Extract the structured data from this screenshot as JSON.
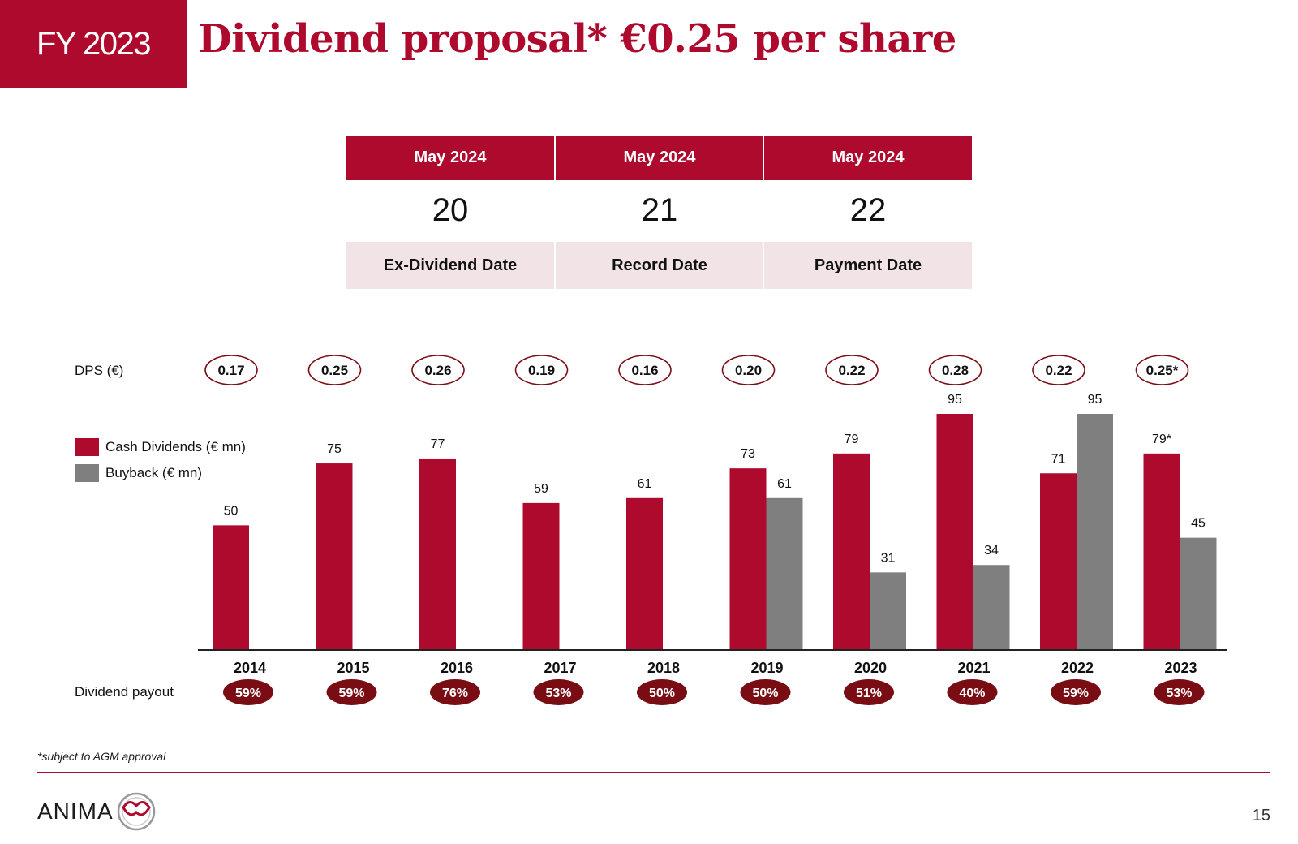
{
  "header": {
    "period": "FY 2023",
    "title": "Dividend proposal* €0.25 per share"
  },
  "dates": [
    {
      "month": "May 2024",
      "day": "20",
      "label": "Ex-Dividend Date"
    },
    {
      "month": "May 2024",
      "day": "21",
      "label": "Record Date"
    },
    {
      "month": "May 2024",
      "day": "22",
      "label": "Payment Date"
    }
  ],
  "labels": {
    "dps": "DPS (€)",
    "payout": "Dividend payout"
  },
  "legend": {
    "cash": "Cash Dividends (€ mn)",
    "buyback": "Buyback (€ mn)"
  },
  "colors": {
    "brand": "#ae0a2e",
    "buyback": "#7f7f7f",
    "payout": "#7a0c14",
    "date_label_bg": "#f2e4e6"
  },
  "chart_data": {
    "type": "bar",
    "categories": [
      "2014",
      "2015",
      "2016",
      "2017",
      "2018",
      "2019",
      "2020",
      "2021",
      "2022",
      "2023"
    ],
    "series": [
      {
        "name": "Cash Dividends (€ mn)",
        "values": [
          50,
          75,
          77,
          59,
          61,
          73,
          79,
          95,
          71,
          79
        ],
        "value_labels": [
          "50",
          "75",
          "77",
          "59",
          "61",
          "73",
          "79",
          "95",
          "71",
          "79*"
        ]
      },
      {
        "name": "Buyback (€ mn)",
        "values": [
          null,
          null,
          null,
          null,
          null,
          61,
          31,
          34,
          95,
          45
        ],
        "value_labels": [
          "",
          "",
          "",
          "",
          "",
          "61",
          "31",
          "34",
          "95",
          "45"
        ]
      }
    ],
    "dps": [
      "0.17",
      "0.25",
      "0.26",
      "0.19",
      "0.16",
      "0.20",
      "0.22",
      "0.28",
      "0.22",
      "0.25*"
    ],
    "payout": [
      "59%",
      "59%",
      "76%",
      "53%",
      "50%",
      "50%",
      "51%",
      "40%",
      "59%",
      "53%"
    ],
    "ylim": [
      0,
      95
    ],
    "grid": false,
    "legend": "left"
  },
  "footer": {
    "footnote": "*subject to AGM approval",
    "logo": "ANIMA",
    "page": "15"
  }
}
